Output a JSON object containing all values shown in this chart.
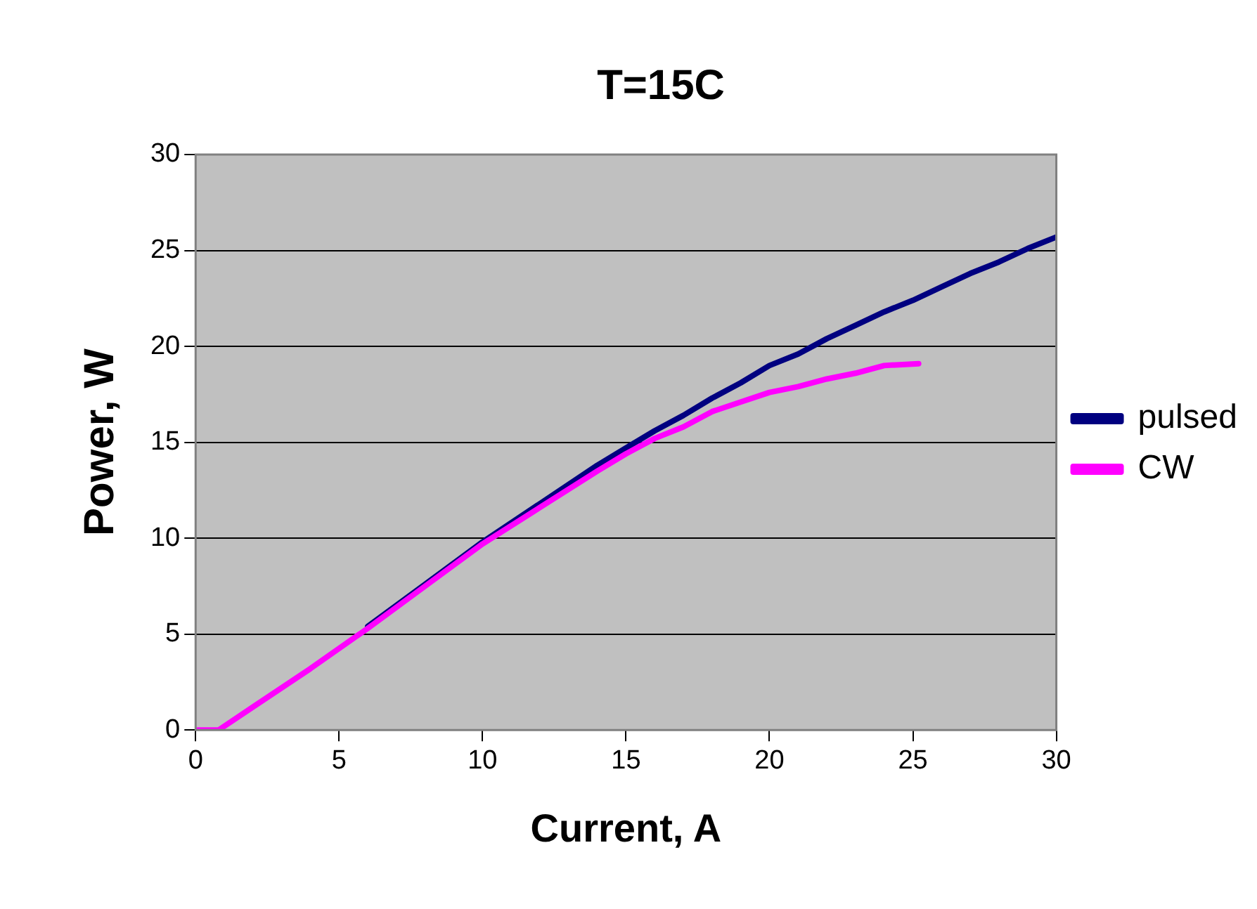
{
  "chart_data": {
    "type": "line",
    "title": "T=15C",
    "xlabel": "Current, A",
    "ylabel": "Power, W",
    "xlim": [
      0,
      30
    ],
    "xticks": [
      0,
      5,
      10,
      15,
      20,
      25,
      30
    ],
    "ylim": [
      0,
      30
    ],
    "yticks": [
      0,
      5,
      10,
      15,
      20,
      25,
      30
    ],
    "grid": "y",
    "legend": "right",
    "marker": "none",
    "line_style": "solid",
    "series": [
      {
        "name": "pulsed",
        "color": "#000080",
        "x": [
          6,
          8,
          10,
          12,
          14,
          15,
          16,
          17,
          18,
          19,
          20,
          21,
          22,
          23,
          24,
          25,
          26,
          27,
          28,
          29,
          30
        ],
        "values": [
          5.4,
          7.6,
          9.8,
          11.8,
          13.8,
          14.7,
          15.6,
          16.4,
          17.3,
          18.1,
          19.0,
          19.6,
          20.4,
          21.1,
          21.8,
          22.4,
          23.1,
          23.8,
          24.4,
          25.1,
          25.7
        ]
      },
      {
        "name": "CW",
        "color": "#ff00ff",
        "x": [
          0,
          0.8,
          2,
          4,
          6,
          8,
          10,
          12,
          14,
          15,
          16,
          17,
          18,
          19,
          20,
          21,
          22,
          23,
          24,
          25.2
        ],
        "values": [
          0,
          0,
          1.2,
          3.2,
          5.3,
          7.5,
          9.7,
          11.6,
          13.5,
          14.4,
          15.2,
          15.8,
          16.6,
          17.1,
          17.6,
          17.9,
          18.3,
          18.6,
          19.0,
          19.1
        ]
      }
    ]
  }
}
